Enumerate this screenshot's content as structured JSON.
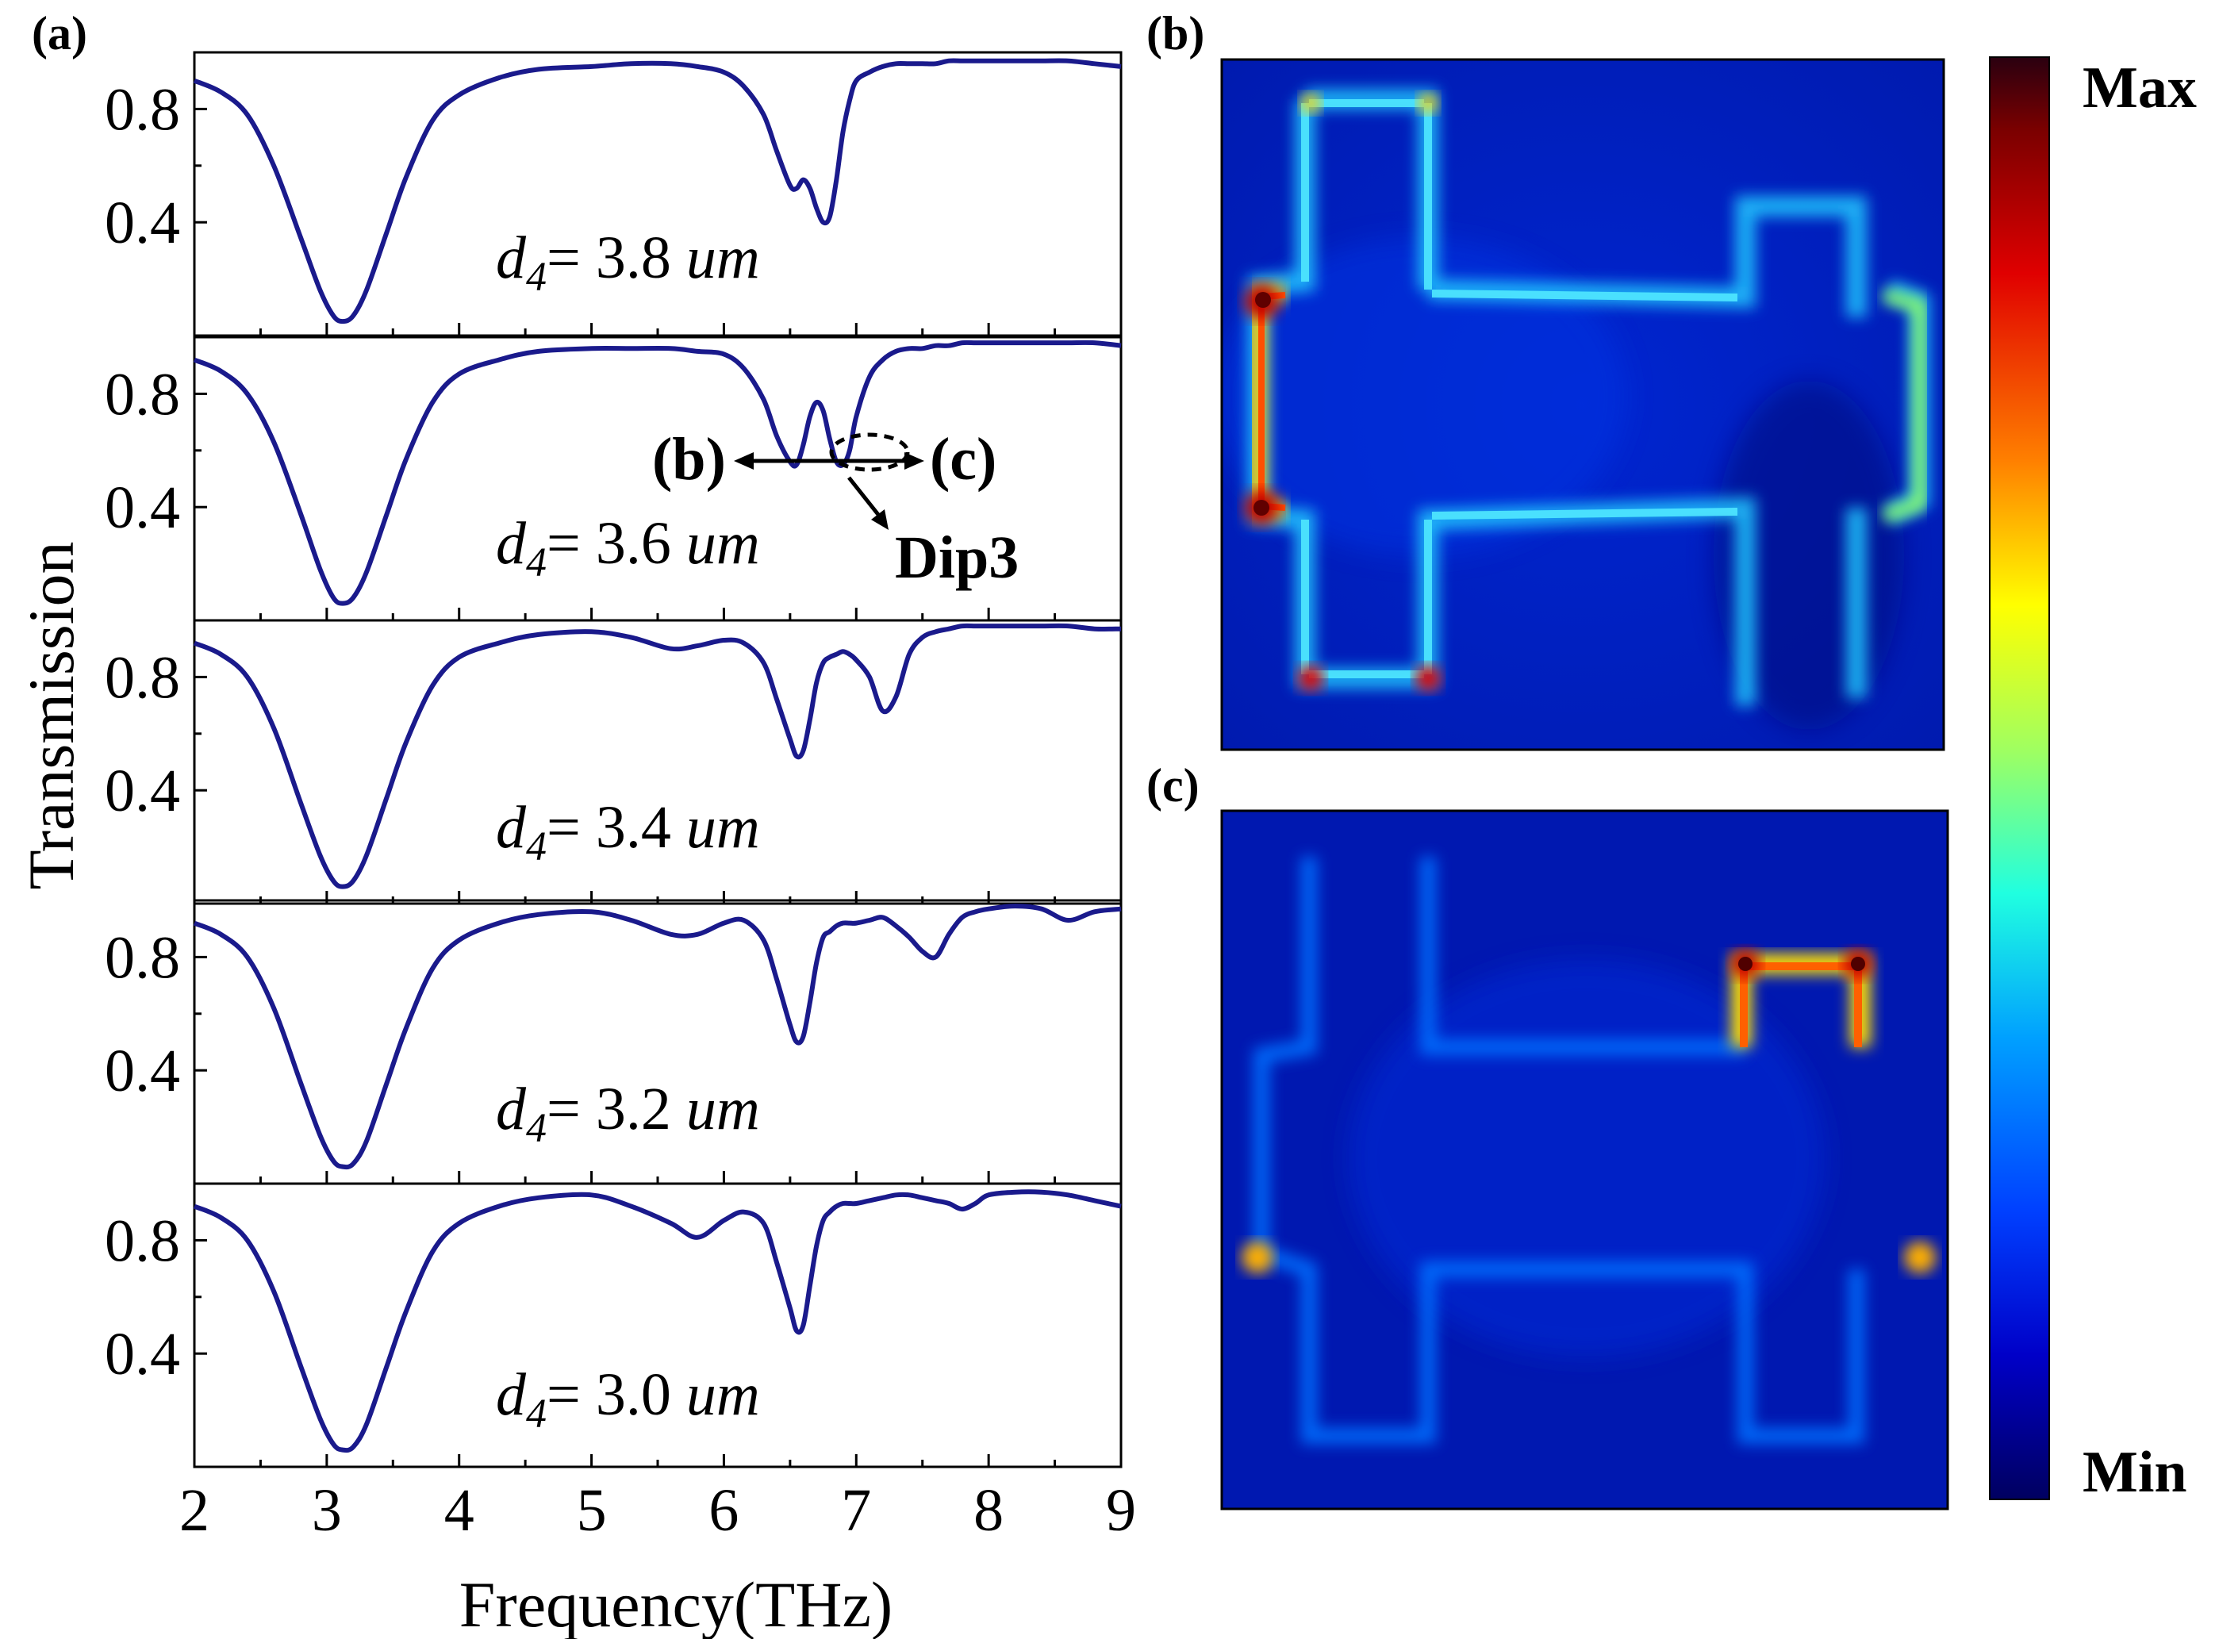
{
  "chart_data": [
    {
      "type": "line",
      "panel_label": "(a)",
      "xlabel": "Frequency(THz)",
      "ylabel": "Transmission",
      "xlim": [
        2,
        9
      ],
      "ylim": [
        0,
        1
      ],
      "x_ticks": [
        "2",
        "3",
        "4",
        "5",
        "6",
        "7",
        "8",
        "9"
      ],
      "y_ticks": [
        "0.8",
        "0.4"
      ],
      "line_color": "#1a1a8c",
      "x": [
        2.0,
        2.2,
        2.4,
        2.6,
        2.8,
        2.95,
        3.05,
        3.12,
        3.2,
        3.3,
        3.45,
        3.6,
        3.8,
        4.0,
        4.3,
        4.6,
        5.0,
        5.3,
        5.6,
        5.8,
        6.0,
        6.15,
        6.3,
        6.4,
        6.5,
        6.55,
        6.6,
        6.65,
        6.7,
        6.75,
        6.8,
        6.85,
        6.9,
        6.95,
        7.0,
        7.1,
        7.2,
        7.3,
        7.4,
        7.5,
        7.6,
        7.7,
        7.8,
        7.9,
        8.0,
        8.2,
        8.4,
        8.6,
        8.8,
        9.0
      ],
      "series": [
        {
          "name": "3.8 um",
          "label_var": "d",
          "label_sub": "4",
          "label_value": "= 3.8 ",
          "label_unit": "um",
          "values": [
            0.9,
            0.86,
            0.78,
            0.6,
            0.35,
            0.16,
            0.07,
            0.05,
            0.07,
            0.16,
            0.36,
            0.56,
            0.76,
            0.85,
            0.91,
            0.94,
            0.95,
            0.96,
            0.96,
            0.95,
            0.93,
            0.88,
            0.78,
            0.65,
            0.53,
            0.52,
            0.55,
            0.52,
            0.45,
            0.4,
            0.42,
            0.55,
            0.72,
            0.83,
            0.9,
            0.93,
            0.95,
            0.96,
            0.96,
            0.96,
            0.96,
            0.97,
            0.97,
            0.97,
            0.97,
            0.97,
            0.97,
            0.97,
            0.96,
            0.95
          ]
        },
        {
          "name": "3.6 um",
          "label_var": "d",
          "label_sub": "4",
          "label_value": "= 3.6 ",
          "label_unit": "um",
          "values": [
            0.92,
            0.88,
            0.8,
            0.63,
            0.38,
            0.18,
            0.08,
            0.06,
            0.08,
            0.17,
            0.37,
            0.57,
            0.77,
            0.87,
            0.92,
            0.95,
            0.96,
            0.96,
            0.96,
            0.95,
            0.94,
            0.89,
            0.78,
            0.65,
            0.56,
            0.55,
            0.62,
            0.72,
            0.77,
            0.74,
            0.64,
            0.56,
            0.55,
            0.6,
            0.72,
            0.86,
            0.92,
            0.95,
            0.96,
            0.96,
            0.97,
            0.97,
            0.98,
            0.98,
            0.98,
            0.98,
            0.98,
            0.98,
            0.98,
            0.97
          ]
        },
        {
          "name": "3.4 um",
          "label_var": "d",
          "label_sub": "4",
          "label_value": "= 3.4 ",
          "label_unit": "um",
          "values": [
            0.92,
            0.88,
            0.8,
            0.62,
            0.36,
            0.17,
            0.08,
            0.06,
            0.08,
            0.17,
            0.37,
            0.57,
            0.77,
            0.87,
            0.92,
            0.95,
            0.96,
            0.94,
            0.9,
            0.91,
            0.93,
            0.92,
            0.85,
            0.72,
            0.58,
            0.52,
            0.54,
            0.65,
            0.78,
            0.85,
            0.87,
            0.88,
            0.89,
            0.88,
            0.86,
            0.8,
            0.68,
            0.73,
            0.88,
            0.94,
            0.96,
            0.97,
            0.98,
            0.98,
            0.98,
            0.98,
            0.98,
            0.98,
            0.97,
            0.97
          ]
        },
        {
          "name": "3.2 um",
          "label_var": "d",
          "label_sub": "4",
          "label_value": "= 3.2 ",
          "label_unit": "um",
          "values": [
            0.92,
            0.88,
            0.8,
            0.62,
            0.36,
            0.17,
            0.08,
            0.06,
            0.07,
            0.15,
            0.35,
            0.55,
            0.76,
            0.86,
            0.92,
            0.95,
            0.96,
            0.93,
            0.88,
            0.88,
            0.92,
            0.93,
            0.86,
            0.72,
            0.56,
            0.5,
            0.52,
            0.64,
            0.78,
            0.87,
            0.89,
            0.91,
            0.92,
            0.92,
            0.92,
            0.93,
            0.94,
            0.91,
            0.87,
            0.82,
            0.8,
            0.88,
            0.94,
            0.96,
            0.97,
            0.98,
            0.97,
            0.93,
            0.96,
            0.97
          ]
        },
        {
          "name": "3.0 um",
          "label_var": "d",
          "label_sub": "4",
          "label_value": "= 3.0 ",
          "label_unit": "um",
          "values": [
            0.92,
            0.88,
            0.8,
            0.62,
            0.36,
            0.17,
            0.08,
            0.06,
            0.07,
            0.15,
            0.35,
            0.55,
            0.76,
            0.86,
            0.92,
            0.95,
            0.96,
            0.92,
            0.86,
            0.81,
            0.87,
            0.9,
            0.86,
            0.72,
            0.56,
            0.48,
            0.5,
            0.64,
            0.78,
            0.87,
            0.9,
            0.92,
            0.93,
            0.93,
            0.93,
            0.94,
            0.95,
            0.96,
            0.96,
            0.95,
            0.94,
            0.93,
            0.91,
            0.93,
            0.96,
            0.97,
            0.97,
            0.96,
            0.94,
            0.92
          ]
        }
      ],
      "annotations": {
        "left_label": "(b)",
        "right_label": "(c)",
        "dip_label": "Dip3"
      }
    },
    {
      "type": "heatmap",
      "panel_label": "(b)",
      "description_mode": "field distribution",
      "hot_spots": "left arms and top-left cross corners"
    },
    {
      "type": "heatmap",
      "panel_label": "(c)",
      "description_mode": "field distribution",
      "hot_spots": "top-right small bracket corners"
    }
  ],
  "colorbar": {
    "max_label": "Max",
    "min_label": "Min",
    "colors": [
      "#2a003a",
      "#4a0000",
      "#b00000",
      "#ff2a00",
      "#ff9a00",
      "#ffff00",
      "#9fff40",
      "#20ffdf",
      "#00a0ff",
      "#0040ff",
      "#0000cc",
      "#000060"
    ]
  }
}
